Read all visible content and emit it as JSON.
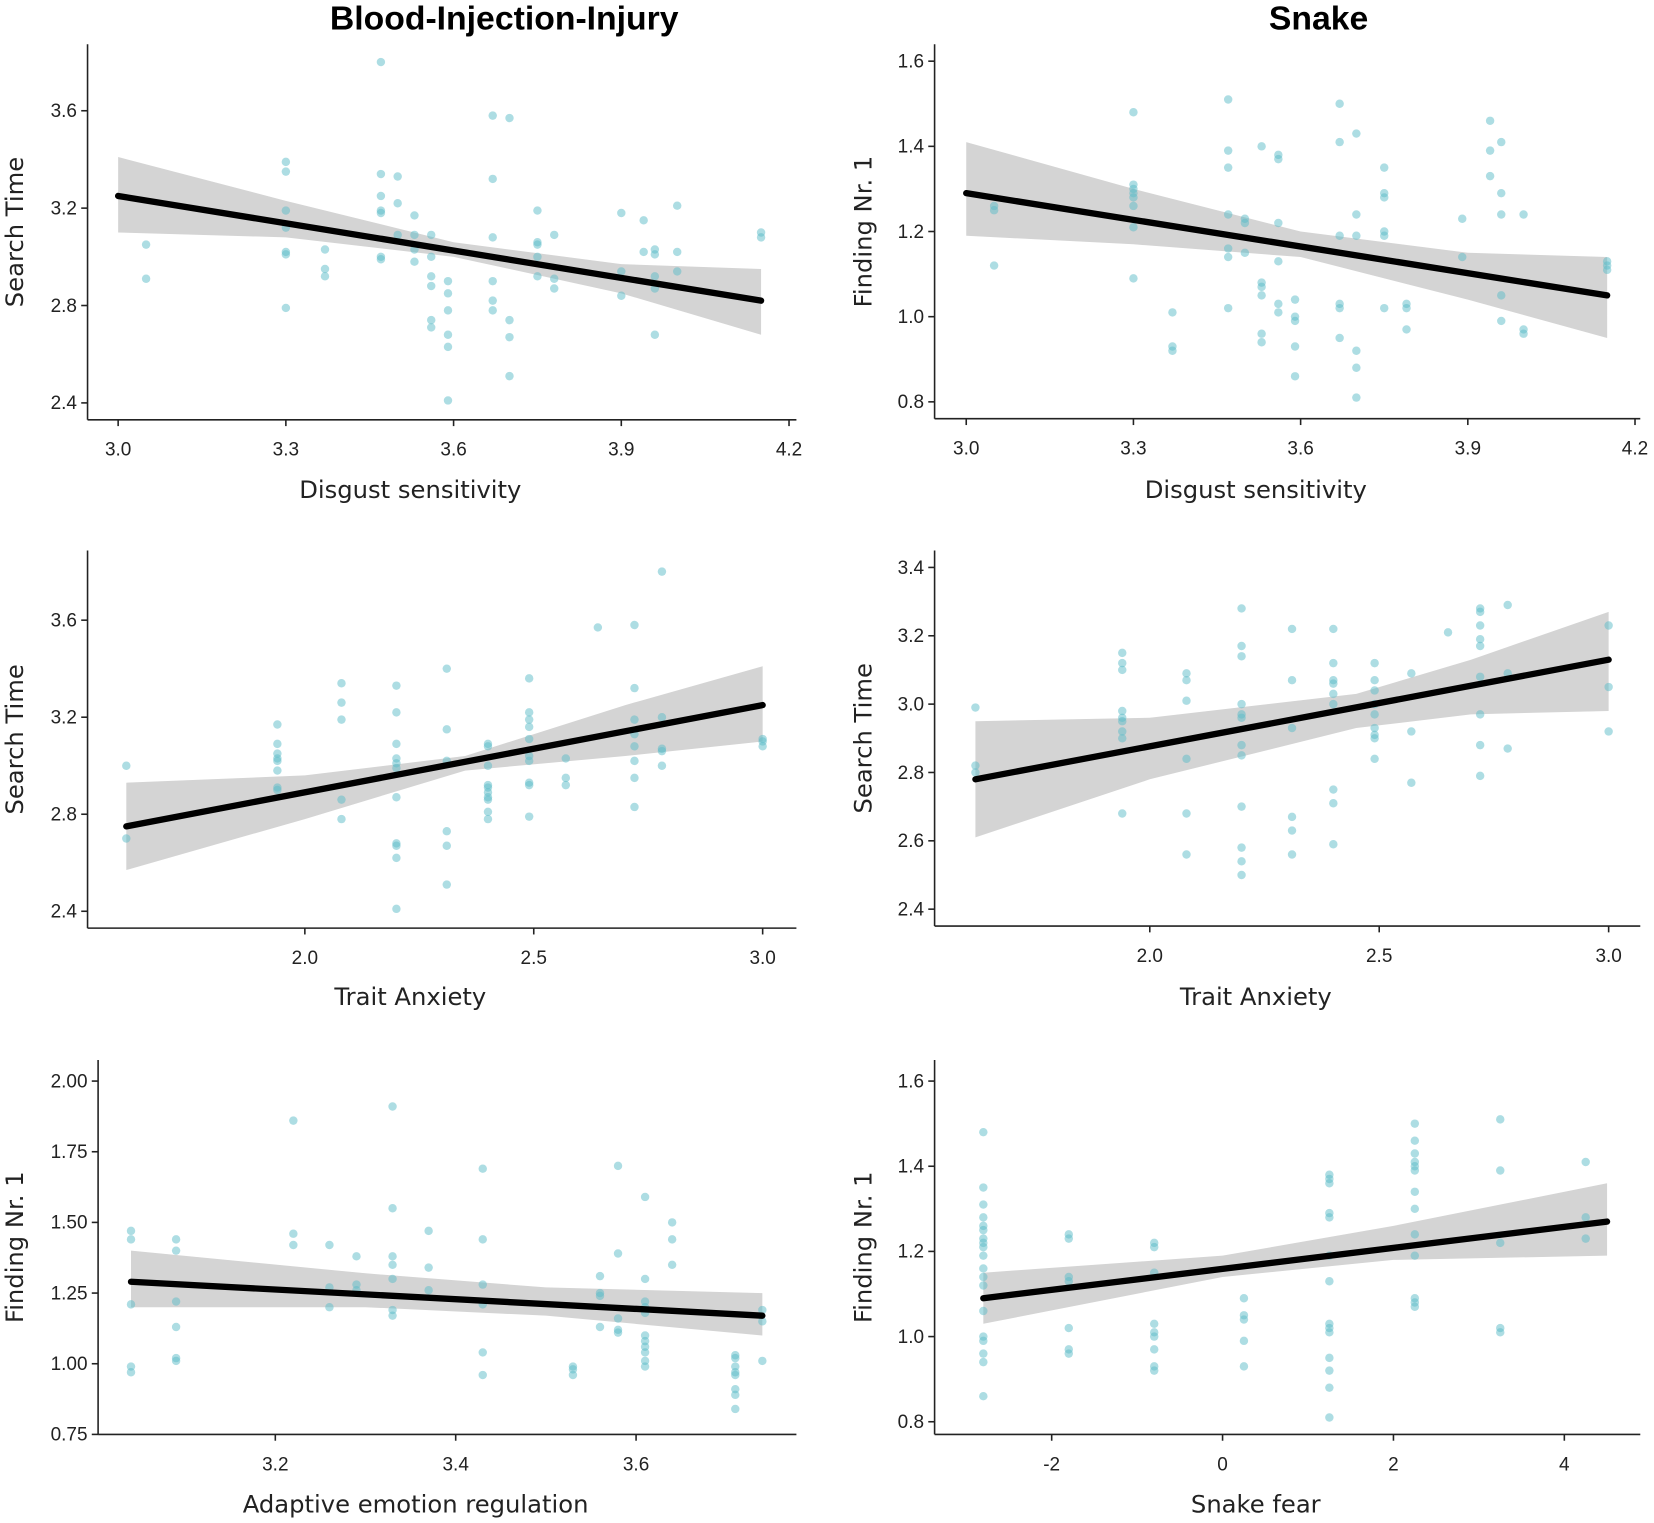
{
  "column_titles": [
    "Blood-Injection-Injury",
    "Snake"
  ],
  "colors": {
    "point": "#5bbcc8",
    "band": "#d4d4d4",
    "line": "#000000",
    "axis": "#222222"
  },
  "chart_data": [
    {
      "type": "scatter",
      "title": "Blood-Injection-Injury",
      "xlabel": "Disgust sensitivity",
      "ylabel": "Search Time",
      "xticks": [
        3.0,
        3.3,
        3.6,
        3.9,
        4.2
      ],
      "xtick_labels": [
        "3.0",
        "3.3",
        "3.6",
        "3.9",
        "4.2"
      ],
      "yticks": [
        2.4,
        2.8,
        3.2,
        3.6
      ],
      "ytick_labels": [
        "2.4",
        "2.8",
        "3.2",
        "3.6"
      ],
      "regression_line": [
        [
          3.0,
          3.25
        ],
        [
          4.15,
          2.82
        ]
      ],
      "ci": [
        [
          3.0,
          3.1,
          3.41
        ],
        [
          3.3,
          3.08,
          3.23
        ],
        [
          3.6,
          3.0,
          3.06
        ],
        [
          3.9,
          2.85,
          2.97
        ],
        [
          4.15,
          2.68,
          2.95
        ]
      ],
      "points": [
        [
          3.05,
          [
            3.05,
            2.91
          ]
        ],
        [
          3.3,
          [
            3.39,
            3.35,
            3.19,
            3.12,
            3.02,
            3.01,
            2.79
          ]
        ],
        [
          3.37,
          [
            3.03,
            2.95,
            2.92
          ]
        ],
        [
          3.47,
          [
            3.8,
            3.34,
            3.25,
            3.19,
            3.18,
            3.0,
            2.99
          ]
        ],
        [
          3.5,
          [
            3.33,
            3.22,
            3.09
          ]
        ],
        [
          3.53,
          [
            3.17,
            3.09,
            3.03,
            2.98
          ]
        ],
        [
          3.56,
          [
            3.09,
            3.0,
            2.92,
            2.88,
            2.74,
            2.71
          ]
        ],
        [
          3.59,
          [
            2.9,
            2.85,
            2.78,
            2.68,
            2.63,
            2.41
          ]
        ],
        [
          3.67,
          [
            3.58,
            3.32,
            3.08,
            2.9,
            2.82,
            2.78
          ]
        ],
        [
          3.7,
          [
            3.57,
            2.74,
            2.67,
            2.51
          ]
        ],
        [
          3.75,
          [
            3.19,
            3.06,
            3.05,
            3.0,
            2.92
          ]
        ],
        [
          3.78,
          [
            3.09,
            2.91,
            2.87
          ]
        ],
        [
          3.9,
          [
            3.18,
            2.94,
            2.84
          ]
        ],
        [
          3.94,
          [
            3.15,
            3.02
          ]
        ],
        [
          3.96,
          [
            3.03,
            3.01,
            2.92,
            2.87,
            2.68
          ]
        ],
        [
          4.0,
          [
            3.21,
            3.02,
            2.94
          ]
        ],
        [
          4.15,
          [
            3.1,
            3.08
          ]
        ]
      ]
    },
    {
      "type": "scatter",
      "title": "Snake",
      "xlabel": "Disgust sensitivity",
      "ylabel": "Finding Nr. 1",
      "xticks": [
        3.0,
        3.3,
        3.6,
        3.9,
        4.2
      ],
      "xtick_labels": [
        "3.0",
        "3.3",
        "3.6",
        "3.9",
        "4.2"
      ],
      "yticks": [
        0.8,
        1.0,
        1.2,
        1.4,
        1.6
      ],
      "ytick_labels": [
        "0.8",
        "1.0",
        "1.2",
        "1.4",
        "1.6"
      ],
      "regression_line": [
        [
          3.0,
          1.29
        ],
        [
          4.15,
          1.05
        ]
      ],
      "ci": [
        [
          3.0,
          1.19,
          1.41
        ],
        [
          3.3,
          1.17,
          1.3
        ],
        [
          3.6,
          1.14,
          1.2
        ],
        [
          3.9,
          1.04,
          1.15
        ],
        [
          4.15,
          0.95,
          1.14
        ]
      ],
      "points": [
        [
          3.05,
          [
            1.26,
            1.25,
            1.12
          ]
        ],
        [
          3.3,
          [
            1.48,
            1.31,
            1.3,
            1.29,
            1.28,
            1.26,
            1.21,
            1.09
          ]
        ],
        [
          3.37,
          [
            1.01,
            0.93,
            0.92
          ]
        ],
        [
          3.47,
          [
            1.51,
            1.39,
            1.35,
            1.24,
            1.16,
            1.14,
            1.02
          ]
        ],
        [
          3.5,
          [
            1.23,
            1.22,
            1.15
          ]
        ],
        [
          3.53,
          [
            1.4,
            1.08,
            1.07,
            1.05,
            0.96,
            0.94
          ]
        ],
        [
          3.56,
          [
            1.38,
            1.37,
            1.22,
            1.13,
            1.03,
            1.01
          ]
        ],
        [
          3.59,
          [
            1.04,
            1.0,
            0.99,
            0.93,
            0.86
          ]
        ],
        [
          3.67,
          [
            1.5,
            1.41,
            1.19,
            1.03,
            1.02,
            0.95
          ]
        ],
        [
          3.7,
          [
            1.43,
            1.24,
            1.19,
            0.92,
            0.88,
            0.81
          ]
        ],
        [
          3.75,
          [
            1.35,
            1.29,
            1.28,
            1.2,
            1.19,
            1.02
          ]
        ],
        [
          3.79,
          [
            1.03,
            1.02,
            0.97
          ]
        ],
        [
          3.89,
          [
            1.23,
            1.14
          ]
        ],
        [
          3.94,
          [
            1.46,
            1.39,
            1.33
          ]
        ],
        [
          3.96,
          [
            1.41,
            1.29,
            1.24,
            1.05,
            0.99
          ]
        ],
        [
          4.0,
          [
            1.24,
            0.97,
            0.96
          ]
        ],
        [
          4.15,
          [
            1.13,
            1.12,
            1.11
          ]
        ]
      ]
    },
    {
      "type": "scatter",
      "title": "",
      "xlabel": "Trait Anxiety",
      "ylabel": "Search Time",
      "xticks": [
        2.0,
        2.5,
        3.0
      ],
      "xtick_labels": [
        "2.0",
        "2.5",
        "3.0"
      ],
      "yticks": [
        2.4,
        2.8,
        3.2,
        3.6
      ],
      "ytick_labels": [
        "2.4",
        "2.8",
        "3.2",
        "3.6"
      ],
      "regression_line": [
        [
          1.61,
          2.75
        ],
        [
          3.0,
          3.25
        ]
      ],
      "ci": [
        [
          1.61,
          2.57,
          2.93
        ],
        [
          2.0,
          2.78,
          2.96
        ],
        [
          2.35,
          2.98,
          3.04
        ],
        [
          2.7,
          3.04,
          3.25
        ],
        [
          3.0,
          3.1,
          3.41
        ]
      ],
      "points": [
        [
          1.61,
          [
            3.0,
            2.7
          ]
        ],
        [
          1.94,
          [
            3.17,
            3.09,
            3.05,
            3.03,
            3.02,
            2.98,
            2.91,
            2.9
          ]
        ],
        [
          2.08,
          [
            3.34,
            3.26,
            3.19,
            2.86,
            2.78
          ]
        ],
        [
          2.2,
          [
            3.33,
            3.22,
            3.09,
            3.03,
            3.01,
            2.99,
            2.87,
            2.68,
            2.67,
            2.62,
            2.41
          ]
        ],
        [
          2.31,
          [
            3.4,
            3.15,
            3.02,
            2.73,
            2.67,
            2.51
          ]
        ],
        [
          2.4,
          [
            3.09,
            3.08,
            3.0,
            2.92,
            2.91,
            2.89,
            2.87,
            2.86,
            2.81,
            2.78
          ]
        ],
        [
          2.49,
          [
            3.36,
            3.22,
            3.19,
            3.16,
            3.11,
            3.04,
            3.02,
            2.93,
            2.92,
            2.79
          ]
        ],
        [
          2.57,
          [
            3.03,
            2.95,
            2.92
          ]
        ],
        [
          2.64,
          [
            3.57
          ]
        ],
        [
          2.72,
          [
            3.58,
            3.32,
            3.19,
            3.13,
            3.08,
            3.02,
            2.95,
            2.83
          ]
        ],
        [
          2.78,
          [
            3.8,
            3.2,
            3.07,
            3.06,
            3.0
          ]
        ],
        [
          3.0,
          [
            3.11,
            3.1,
            3.08
          ]
        ]
      ]
    },
    {
      "type": "scatter",
      "title": "",
      "xlabel": "Trait Anxiety",
      "ylabel": "Search Time",
      "xticks": [
        2.0,
        2.5,
        3.0
      ],
      "xtick_labels": [
        "2.0",
        "2.5",
        "3.0"
      ],
      "yticks": [
        2.4,
        2.6,
        2.8,
        3.0,
        3.2,
        3.4
      ],
      "ytick_labels": [
        "2.4",
        "2.6",
        "2.8",
        "3.0",
        "3.2",
        "3.4"
      ],
      "regression_line": [
        [
          1.62,
          2.78
        ],
        [
          3.0,
          3.13
        ]
      ],
      "ci": [
        [
          1.62,
          2.61,
          2.95
        ],
        [
          2.0,
          2.78,
          2.96
        ],
        [
          2.45,
          2.93,
          3.03
        ],
        [
          2.7,
          2.97,
          3.13
        ],
        [
          3.0,
          2.98,
          3.27
        ]
      ],
      "points": [
        [
          1.62,
          [
            2.99,
            2.82,
            2.8
          ]
        ],
        [
          1.94,
          [
            3.15,
            3.12,
            3.1,
            2.98,
            2.96,
            2.95,
            2.92,
            2.9,
            2.68
          ]
        ],
        [
          2.08,
          [
            3.09,
            3.07,
            3.01,
            2.84,
            2.68,
            2.56
          ]
        ],
        [
          2.2,
          [
            3.28,
            3.17,
            3.14,
            3.0,
            2.97,
            2.96,
            2.88,
            2.85,
            2.7,
            2.58,
            2.54,
            2.5
          ]
        ],
        [
          2.31,
          [
            3.22,
            3.07,
            2.93,
            2.67,
            2.63,
            2.56
          ]
        ],
        [
          2.4,
          [
            3.22,
            3.12,
            3.07,
            3.06,
            3.03,
            3.0,
            2.75,
            2.71,
            2.59
          ]
        ],
        [
          2.49,
          [
            3.12,
            3.07,
            3.04,
            3.0,
            2.97,
            2.93,
            2.91,
            2.9,
            2.84
          ]
        ],
        [
          2.57,
          [
            3.09,
            2.92,
            2.77
          ]
        ],
        [
          2.65,
          [
            3.21
          ]
        ],
        [
          2.72,
          [
            3.28,
            3.27,
            3.23,
            3.19,
            3.17,
            3.08,
            2.97,
            2.88,
            2.79
          ]
        ],
        [
          2.78,
          [
            3.29,
            3.09,
            2.87
          ]
        ],
        [
          3.0,
          [
            3.23,
            3.05,
            2.92
          ]
        ]
      ]
    },
    {
      "type": "scatter",
      "title": "",
      "xlabel": "Adaptive emotion regulation",
      "ylabel": "Finding Nr. 1",
      "xticks": [
        3.2,
        3.4,
        3.6
      ],
      "xtick_labels": [
        "3.2",
        "3.4",
        "3.6"
      ],
      "yticks": [
        0.75,
        1.0,
        1.25,
        1.5,
        1.75,
        2.0
      ],
      "ytick_labels": [
        "0.75",
        "1.00",
        "1.25",
        "1.50",
        "1.75",
        "2.00"
      ],
      "regression_line": [
        [
          3.04,
          1.29
        ],
        [
          3.74,
          1.17
        ]
      ],
      "ci": [
        [
          3.04,
          1.2,
          1.4
        ],
        [
          3.3,
          1.2,
          1.32
        ],
        [
          3.5,
          1.17,
          1.27
        ],
        [
          3.74,
          1.1,
          1.25
        ]
      ],
      "points": [
        [
          3.04,
          [
            1.47,
            1.44,
            1.21,
            0.99,
            0.97
          ]
        ],
        [
          3.09,
          [
            1.44,
            1.4,
            1.22,
            1.13,
            1.02,
            1.01
          ]
        ],
        [
          3.22,
          [
            1.86,
            1.46,
            1.42
          ]
        ],
        [
          3.26,
          [
            1.42,
            1.27,
            1.2
          ]
        ],
        [
          3.29,
          [
            1.38,
            1.28,
            1.26
          ]
        ],
        [
          3.33,
          [
            1.91,
            1.55,
            1.38,
            1.35,
            1.3,
            1.19,
            1.17
          ]
        ],
        [
          3.37,
          [
            1.47,
            1.34,
            1.26
          ]
        ],
        [
          3.43,
          [
            1.69,
            1.44,
            1.28,
            1.21,
            1.04,
            0.96
          ]
        ],
        [
          3.53,
          [
            0.99,
            0.98,
            0.96
          ]
        ],
        [
          3.56,
          [
            1.31,
            1.25,
            1.24,
            1.13
          ]
        ],
        [
          3.58,
          [
            1.7,
            1.39,
            1.16,
            1.12,
            1.11
          ]
        ],
        [
          3.61,
          [
            1.59,
            1.3,
            1.22,
            1.2,
            1.18,
            1.1,
            1.08,
            1.06,
            1.04,
            1.01,
            0.99
          ]
        ],
        [
          3.64,
          [
            1.5,
            1.44,
            1.35
          ]
        ],
        [
          3.71,
          [
            1.03,
            1.02,
            0.99,
            0.97,
            0.96,
            0.91,
            0.89,
            0.84
          ]
        ],
        [
          3.74,
          [
            1.19,
            1.15,
            1.01
          ]
        ]
      ]
    },
    {
      "type": "scatter",
      "title": "",
      "xlabel": "Snake fear",
      "ylabel": "Finding Nr. 1",
      "xticks": [
        -2,
        0,
        2,
        4
      ],
      "xtick_labels": [
        "-2",
        "0",
        "2",
        "4"
      ],
      "yticks": [
        0.8,
        1.0,
        1.2,
        1.4,
        1.6
      ],
      "ytick_labels": [
        "0.8",
        "1.0",
        "1.2",
        "1.4",
        "1.6"
      ],
      "regression_line": [
        [
          -2.8,
          1.09
        ],
        [
          4.5,
          1.27
        ]
      ],
      "ci": [
        [
          -2.8,
          1.03,
          1.15
        ],
        [
          0,
          1.14,
          1.19
        ],
        [
          2,
          1.18,
          1.26
        ],
        [
          4.5,
          1.19,
          1.36
        ]
      ],
      "points": [
        [
          -2.8,
          [
            1.48,
            1.35,
            1.31,
            1.28,
            1.26,
            1.25,
            1.23,
            1.22,
            1.21,
            1.19,
            1.16,
            1.14,
            1.12,
            1.06,
            1.0,
            0.99,
            0.96,
            0.94,
            0.86
          ]
        ],
        [
          -1.8,
          [
            1.24,
            1.23,
            1.14,
            1.13,
            1.02,
            0.97,
            0.96
          ]
        ],
        [
          -0.8,
          [
            1.22,
            1.21,
            1.15,
            1.03,
            1.01,
            1.0,
            0.97,
            0.93,
            0.92
          ]
        ],
        [
          0.25,
          [
            1.09,
            1.05,
            1.04,
            0.99,
            0.93
          ]
        ],
        [
          1.25,
          [
            1.38,
            1.37,
            1.36,
            1.29,
            1.28,
            1.19,
            1.13,
            1.03,
            1.02,
            1.01,
            0.95,
            0.92,
            0.88,
            0.81
          ]
        ],
        [
          2.25,
          [
            1.5,
            1.46,
            1.43,
            1.41,
            1.4,
            1.39,
            1.34,
            1.3,
            1.24,
            1.19,
            1.09,
            1.08,
            1.07
          ]
        ],
        [
          3.25,
          [
            1.51,
            1.39,
            1.22,
            1.02,
            1.01
          ]
        ],
        [
          4.25,
          [
            1.41,
            1.28,
            1.23
          ]
        ]
      ]
    }
  ]
}
